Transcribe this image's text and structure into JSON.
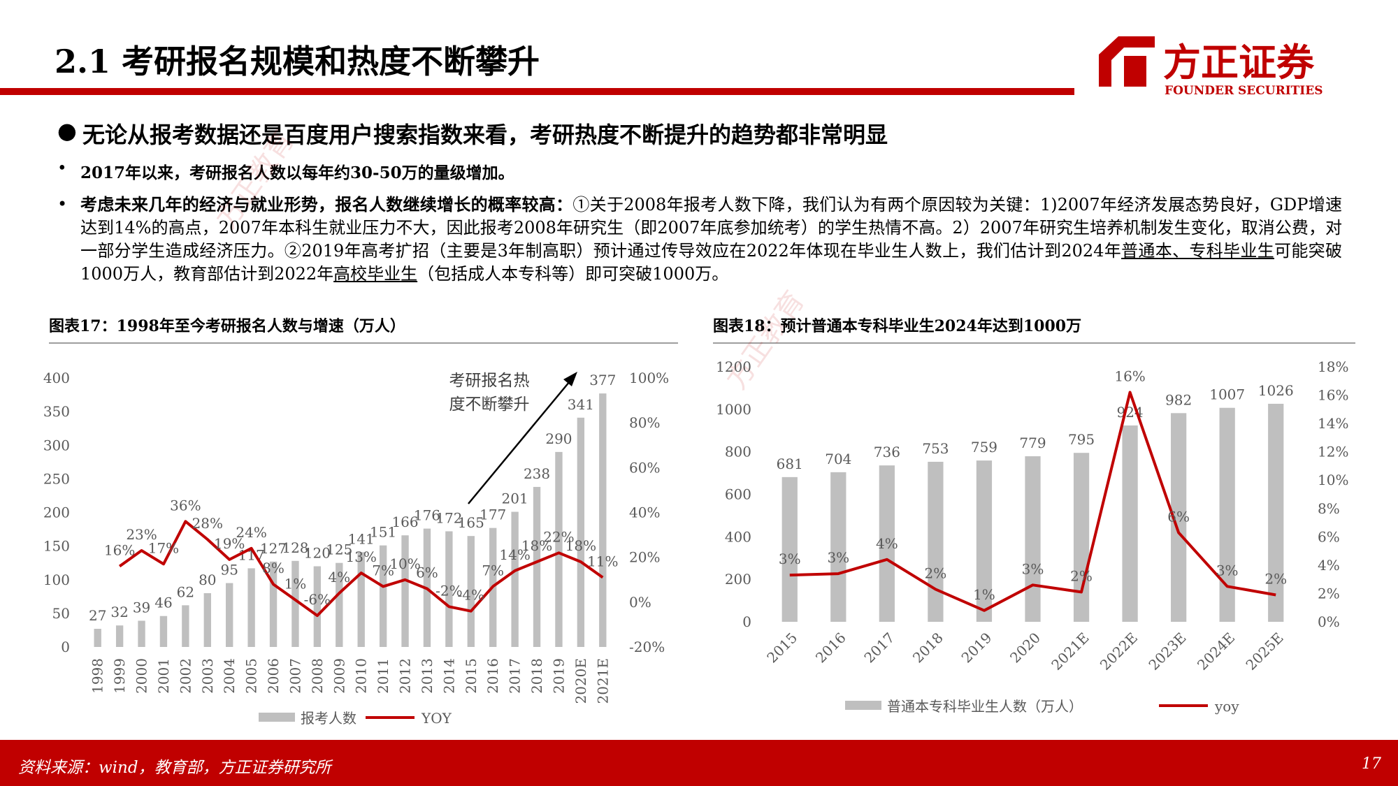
{
  "header": {
    "title": "2.1 考研报名规模和热度不断攀升",
    "logo": {
      "name": "方正证券",
      "english": "FOUNDER SECURITIES"
    }
  },
  "bullets": [
    {
      "runs": [
        {
          "text": "无论从报考数据还是百度用户搜索指数来看，考研热度不断提升的趋势都非常明显",
          "bold": true
        }
      ]
    },
    {
      "runs": [
        {
          "text": "2017年以来，考研报名人数以每年约30-50万的量级增加。",
          "bold": true
        }
      ]
    },
    {
      "runs": [
        {
          "text": "考虑未来几年的经济与就业形势，报名人数继续增长的概率较高：",
          "bold": true
        },
        {
          "text": "①关于2008年报考人数下降，我们认为有两个原因较为关键：1)2007年经济发展态势良好，GDP增速达到14%的高点，2007年本科生就业压力不大，因此报考2008年研究生（即2007年底参加统考）的学生热情不高。2）2007年研究生培养机制发生变化，取消公费，对一部分学生造成经济压力。②2019年高考扩招（主要是3年制高职）预计通过传导效应在2022年体现在毕业生人数上，我们估计到2024年"
        },
        {
          "text": "普通本、专科毕业生",
          "underline": true
        },
        {
          "text": "可能突破1000万人，教育部估计到2022年"
        },
        {
          "text": "高校毕业生",
          "underline": true
        },
        {
          "text": "（包括成人本专科等）即可突破1000万。"
        }
      ]
    }
  ],
  "chart_data": [
    {
      "type": "bar-line",
      "title": "图表17：1998年至今考研报名人数与增速（万人）",
      "annotation": [
        "考研报名热",
        "度不断攀升"
      ],
      "categories": [
        "1998",
        "1999",
        "2000",
        "2001",
        "2002",
        "2003",
        "2004",
        "2005",
        "2006",
        "2007",
        "2008",
        "2009",
        "2010",
        "2011",
        "2012",
        "2013",
        "2014",
        "2015",
        "2016",
        "2017",
        "2018",
        "2019",
        "2020E",
        "2021E"
      ],
      "series": [
        {
          "name": "报考人数",
          "type": "bar",
          "color": "#bfbfbf",
          "values": [
            27,
            32,
            39,
            46,
            62,
            80,
            95,
            117,
            127,
            128,
            120,
            125,
            141,
            151,
            166,
            176,
            172,
            165,
            177,
            201,
            238,
            290,
            341,
            377
          ]
        },
        {
          "name": "YOY",
          "type": "line",
          "axis": "y2",
          "color": "#c00000",
          "values": [
            null,
            16,
            23,
            17,
            36,
            28,
            19,
            24,
            8,
            1,
            -6,
            4,
            13,
            7,
            10,
            6,
            -2,
            -4,
            7,
            14,
            18,
            22,
            18,
            11
          ],
          "value_labels": [
            null,
            "16%",
            "23%",
            "17%",
            "36%",
            "28%",
            "19%",
            "24%",
            "8%",
            "1%",
            "-6%",
            "4%",
            "13%",
            "7%",
            "10%",
            "6%",
            "-2%",
            "-4%",
            "7%",
            "14%",
            "18%",
            "22%",
            "18%",
            "11%"
          ]
        }
      ],
      "ylim": [
        0,
        400
      ],
      "yticks": [
        0,
        50,
        100,
        150,
        200,
        250,
        300,
        350,
        400
      ],
      "y2lim": [
        -20,
        100
      ],
      "y2ticks": [
        {
          "value": -20,
          "label": "-20%"
        },
        {
          "value": 0,
          "label": "0%"
        },
        {
          "value": 20,
          "label": "20%"
        },
        {
          "value": 40,
          "label": "40%"
        },
        {
          "value": 60,
          "label": "60%"
        },
        {
          "value": 80,
          "label": "80%"
        },
        {
          "value": 100,
          "label": "100%"
        }
      ],
      "grid": false,
      "legend": "bottom"
    },
    {
      "type": "bar-line",
      "title": "图表18：预计普通本专科毕业生2024年达到1000万",
      "categories": [
        "2015",
        "2016",
        "2017",
        "2018",
        "2019",
        "2020",
        "2021E",
        "2022E",
        "2023E",
        "2024E",
        "2025E"
      ],
      "series": [
        {
          "name": "普通本专科毕业生人数（万人）",
          "type": "bar",
          "color": "#bfbfbf",
          "values": [
            681,
            704,
            736,
            753,
            759,
            779,
            795,
            924,
            982,
            1007,
            1026
          ]
        },
        {
          "name": "yoy",
          "type": "line",
          "axis": "y2",
          "color": "#c00000",
          "values": [
            3.3,
            3.4,
            4.4,
            2.3,
            0.8,
            2.6,
            2.1,
            16.2,
            6.3,
            2.5,
            1.9
          ],
          "value_labels": [
            "3%",
            "3%",
            "4%",
            "2%",
            "1%",
            "3%",
            "2%",
            "16%",
            "6%",
            "3%",
            "2%"
          ]
        }
      ],
      "ylim": [
        0,
        1200
      ],
      "yticks": [
        0,
        200,
        400,
        600,
        800,
        1000,
        1200
      ],
      "y2lim": [
        0,
        18
      ],
      "y2ticks": [
        {
          "value": 0,
          "label": "0%"
        },
        {
          "value": 2,
          "label": "2%"
        },
        {
          "value": 4,
          "label": "4%"
        },
        {
          "value": 6,
          "label": "6%"
        },
        {
          "value": 8,
          "label": "8%"
        },
        {
          "value": 10,
          "label": "10%"
        },
        {
          "value": 12,
          "label": "12%"
        },
        {
          "value": 14,
          "label": "14%"
        },
        {
          "value": 16,
          "label": "16%"
        },
        {
          "value": 18,
          "label": "18%"
        }
      ],
      "grid": false,
      "legend": "bottom"
    }
  ],
  "watermark": "方正教育",
  "footer": {
    "source": "资料来源：wind，教育部，方正证券研究所",
    "page": "17"
  }
}
